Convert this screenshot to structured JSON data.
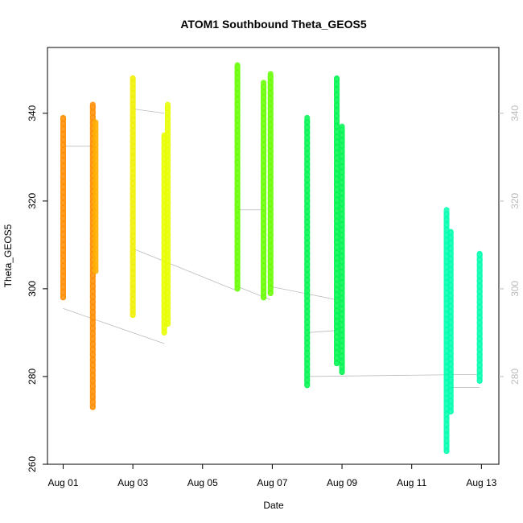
{
  "chart_data": {
    "type": "scatter",
    "title": "ATOM1 Southbound Theta_GEOS5",
    "xlabel": "Date",
    "ylabel": "Theta_GEOS5",
    "x_unit": "days",
    "x_ticks": [
      {
        "day": 1,
        "label": "Aug 01"
      },
      {
        "day": 3,
        "label": "Aug 03"
      },
      {
        "day": 5,
        "label": "Aug 05"
      },
      {
        "day": 7,
        "label": "Aug 07"
      },
      {
        "day": 9,
        "label": "Aug 09"
      },
      {
        "day": 11,
        "label": "Aug 11"
      },
      {
        "day": 13,
        "label": "Aug 13"
      }
    ],
    "xlim": [
      0.55,
      13.5
    ],
    "ylim": [
      260,
      355
    ],
    "y_ticks_left": [
      260,
      280,
      300,
      320,
      340
    ],
    "y_ticks_right": [
      280,
      300,
      320,
      340
    ],
    "right_axis_color": "#bbbbbb",
    "connector_color": "#bbbbbb",
    "series": [
      {
        "color": "#ff8c00",
        "segments": [
          {
            "x": 1.0,
            "y_min": 298,
            "y_max": 339
          },
          {
            "x": 1.85,
            "y_min": 273,
            "y_max": 342
          }
        ]
      },
      {
        "color": "#ffb000",
        "segments": [
          {
            "x": 1.93,
            "y_min": 304,
            "y_max": 338
          }
        ]
      },
      {
        "color": "#f2f000",
        "segments": [
          {
            "x": 3.0,
            "y_min": 294,
            "y_max": 348
          }
        ]
      },
      {
        "color": "#e8ff00",
        "segments": [
          {
            "x": 3.9,
            "y_min": 290,
            "y_max": 335
          },
          {
            "x": 4.0,
            "y_min": 292,
            "y_max": 342
          }
        ]
      },
      {
        "color": "#66ff00",
        "segments": [
          {
            "x": 6.0,
            "y_min": 300,
            "y_max": 351
          },
          {
            "x": 6.75,
            "y_min": 298,
            "y_max": 347
          },
          {
            "x": 6.95,
            "y_min": 299,
            "y_max": 349
          }
        ]
      },
      {
        "color": "#00f550",
        "segments": [
          {
            "x": 8.0,
            "y_min": 278,
            "y_max": 339
          },
          {
            "x": 8.85,
            "y_min": 283,
            "y_max": 348
          },
          {
            "x": 9.0,
            "y_min": 281,
            "y_max": 337
          }
        ]
      },
      {
        "color": "#00ffb0",
        "segments": [
          {
            "x": 12.0,
            "y_min": 263,
            "y_max": 318
          },
          {
            "x": 12.12,
            "y_min": 272,
            "y_max": 313
          },
          {
            "x": 12.95,
            "y_min": 279,
            "y_max": 308
          }
        ]
      }
    ],
    "connectors": [
      [
        [
          1.0,
          332.5
        ],
        [
          1.85,
          332.5
        ]
      ],
      [
        [
          1.0,
          295.5
        ],
        [
          3.9,
          287.5
        ]
      ],
      [
        [
          3.0,
          341
        ],
        [
          3.9,
          340
        ]
      ],
      [
        [
          3.05,
          309
        ],
        [
          6.0,
          299.5
        ]
      ],
      [
        [
          6.0,
          318
        ],
        [
          6.75,
          318
        ]
      ],
      [
        [
          6.0,
          300.5
        ],
        [
          6.95,
          297.5
        ]
      ],
      [
        [
          6.95,
          300.5
        ],
        [
          8.85,
          297.5
        ]
      ],
      [
        [
          8.0,
          290
        ],
        [
          8.85,
          290.5
        ]
      ],
      [
        [
          8.0,
          280
        ],
        [
          12.95,
          280.5
        ]
      ],
      [
        [
          12.12,
          277.5
        ],
        [
          12.95,
          277.5
        ]
      ]
    ],
    "grid": false,
    "legend": "none"
  }
}
